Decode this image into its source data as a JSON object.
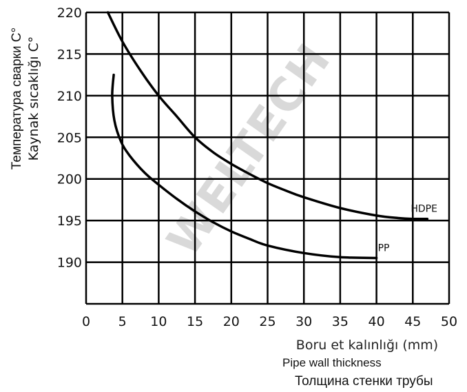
{
  "chart_data": {
    "type": "line",
    "watermark": "WELTECH",
    "ylabel_lines": [
      "Температура сварки C°",
      "Kaynak sıcaklığı C°"
    ],
    "xlabel_lines": [
      "Boru et kalınlığı (mm)",
      "Pipe wall thickness",
      "Толщина стенки трубы"
    ],
    "xlim": [
      0,
      50
    ],
    "ylim": [
      185,
      220
    ],
    "x_ticks": [
      0,
      5,
      10,
      15,
      20,
      25,
      30,
      35,
      40,
      45,
      50
    ],
    "y_ticks": [
      190,
      195,
      200,
      205,
      210,
      215,
      220
    ],
    "grid": true,
    "series": [
      {
        "name": "HDPE",
        "x": [
          3,
          5,
          7.5,
          10,
          12.5,
          15,
          17.5,
          20,
          22.5,
          25,
          27.5,
          30,
          35,
          40,
          43,
          45,
          47
        ],
        "y": [
          220,
          216.5,
          213,
          210,
          207.5,
          205,
          203.2,
          201.8,
          200.6,
          199.5,
          198.6,
          197.8,
          196.5,
          195.6,
          195.3,
          195.2,
          195.2
        ]
      },
      {
        "name": "PP",
        "x": [
          3.8,
          3.6,
          3.9,
          4.8,
          6,
          8,
          10,
          12.5,
          15,
          17.5,
          20,
          22.5,
          25,
          30,
          35,
          40
        ],
        "y": [
          212.5,
          210,
          207,
          204.5,
          202.8,
          200.8,
          199.3,
          197.6,
          196.1,
          194.8,
          193.7,
          192.8,
          192,
          191.1,
          190.6,
          190.5
        ]
      }
    ]
  }
}
